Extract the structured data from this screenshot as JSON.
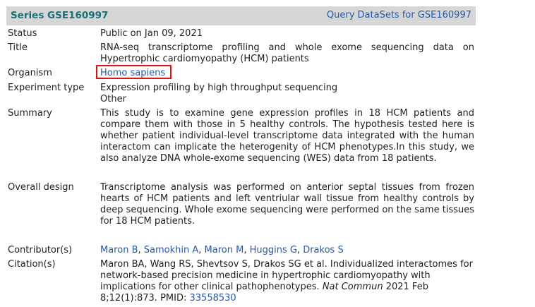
{
  "header": {
    "series_title": "Series GSE160997",
    "query_link": "Query DataSets for GSE160997"
  },
  "fields": {
    "status": {
      "label": "Status",
      "value": "Public on Jan 09, 2021"
    },
    "title": {
      "label": "Title",
      "value": "RNA-seq transcriptome profiling and whole exome sequencing data on Hypertrophic cardiomyopathy (HCM) patients"
    },
    "organism": {
      "label": "Organism",
      "value": "Homo sapiens"
    },
    "experiment_type": {
      "label": "Experiment type",
      "value_1": "Expression profiling by high throughput sequencing",
      "value_2": "Other"
    },
    "summary": {
      "label": "Summary",
      "value": "This study is to examine gene expression profiles in 18 HCM patients and compare them with those in 5 healthy controls. The hypothesis tested here is whether patient individual-level transcriptome data integrated with the human interactom can implicate the heterogenity of HCM phenotypes.In this study, we also analyze DNA whole-exome sequencing (WES) data from 18 patients."
    },
    "overall_design": {
      "label": "Overall design",
      "value": "Transcriptome analysis was performed on anterior septal tissues from frozen hearts of HCM patients and left ventriular wall tissue from healthy controls by deep sequencing. Whole exome sequencing were performed on the same tissues for 18 HCM patients."
    },
    "contributors": {
      "label": "Contributor(s)",
      "names": [
        "Maron B",
        "Samokhin A",
        "Maron M",
        "Huggins G",
        "Drakos S"
      ]
    },
    "citation": {
      "label": "Citation(s)",
      "text": "Maron BA, Wang RS, Shevtsov S, Drakos SG et al. Individualized interactomes for network-based precision medicine in hypertrophic cardiomyopathy with implications for other clinical pathophenotypes.",
      "journal": "Nat Commun",
      "details": "2021 Feb 8;12(1):873. PMID:",
      "pmid": "33558530"
    }
  },
  "colors": {
    "header_bg": "#d6d6d6",
    "series_title": "#197275",
    "link": "#2559a8",
    "highlight_box": "#e01414"
  }
}
